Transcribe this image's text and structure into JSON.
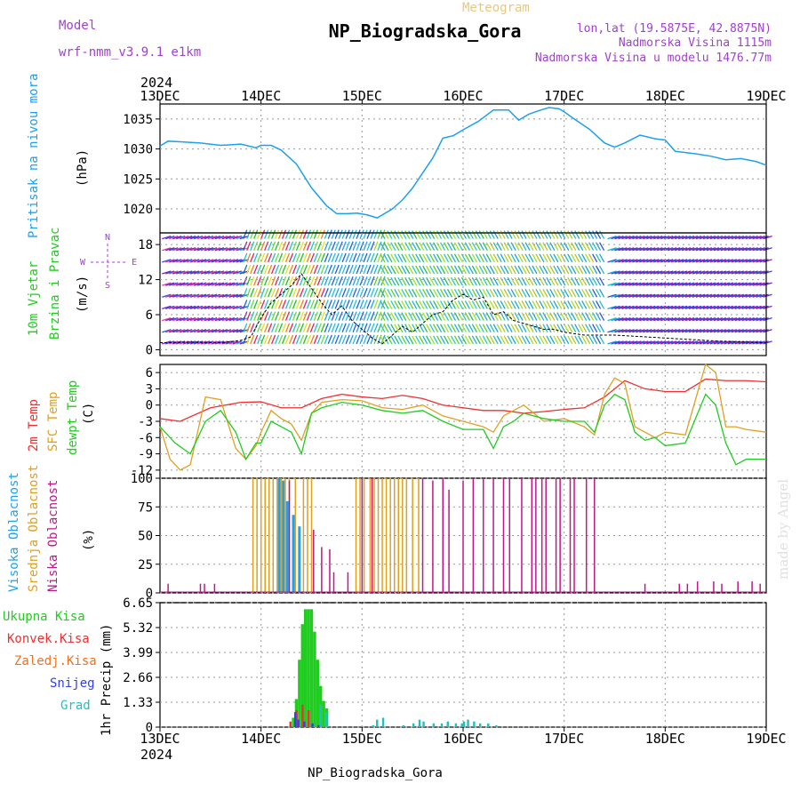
{
  "header": {
    "model_label": "Model",
    "model_name": "wrf-nmm_v3.9.1 e1km",
    "product": "Meteogram",
    "station": "NP_Biogradska_Gora",
    "lonlat": "lon,lat (19.5875E, 42.8875N)",
    "altitude": "Nadmorska Visina 1115m",
    "model_altitude": "Nadmorska Visina u modelu 1476.77m",
    "year": "2024",
    "footer_station": "NP_Biogradska_Gora",
    "watermark": "made by Angel"
  },
  "colors": {
    "pressure": "#1ea0f0",
    "t2m": "#ee3030",
    "tsfc": "#e0a020",
    "dewpt": "#20cc20",
    "cloud_high": "#20a0f0",
    "cloud_mid": "#e0a020",
    "cloud_low": "#c0188a",
    "total_precip": "#20cc20",
    "conv_precip": "#ee3030",
    "frz_precip": "#f07020",
    "snow": "#3040ee",
    "graupel": "#20c0c0",
    "purple_text": "#a040d0"
  },
  "chart_data": [
    {
      "type": "line",
      "panel": "pressure",
      "ylabel_left": "Pritisak na nivou mora",
      "ylabel": "(hPa)",
      "x_ticks": [
        "13DEC",
        "14DEC",
        "15DEC",
        "16DEC",
        "17DEC",
        "18DEC",
        "19DEC"
      ],
      "ylim": [
        1016,
        1037.5
      ],
      "yticks": [
        "1020",
        "1025",
        "1030",
        "1035"
      ],
      "series": [
        {
          "x": [
            0,
            0.08,
            0.2,
            0.4,
            0.6,
            0.8,
            0.95,
            1.0,
            1.1,
            1.2,
            1.35,
            1.5,
            1.65,
            1.75,
            1.85,
            1.95,
            2.05,
            2.15,
            2.3,
            2.4,
            2.5,
            2.6,
            2.7,
            2.8,
            2.9,
            3.0,
            3.15,
            3.3,
            3.45,
            3.55,
            3.65,
            3.75,
            3.85,
            3.95,
            4.0,
            4.1,
            4.25,
            4.4,
            4.5,
            4.6,
            4.75,
            4.9,
            5.0,
            5.1,
            5.3,
            5.45,
            5.6,
            5.75,
            5.9,
            6.0
          ],
          "y": [
            1030.5,
            1031.3,
            1031.2,
            1031,
            1030.6,
            1030.8,
            1030.2,
            1030.6,
            1030.6,
            1029.8,
            1027.5,
            1023.5,
            1020.5,
            1019.2,
            1019.2,
            1019.3,
            1019,
            1018.5,
            1020,
            1021.5,
            1023.5,
            1026,
            1028.5,
            1031.8,
            1032.2,
            1033.2,
            1034.6,
            1036.5,
            1036.5,
            1034.8,
            1035.8,
            1036.4,
            1036.9,
            1036.7,
            1036.2,
            1035,
            1033.3,
            1031,
            1030.3,
            1031,
            1032.3,
            1031.7,
            1031.5,
            1029.6,
            1029.2,
            1028.8,
            1028.2,
            1028.4,
            1027.9,
            1027.3
          ]
        }
      ]
    },
    {
      "type": "line",
      "panel": "wind",
      "ylabel_left": [
        "10m Vjetar",
        "Brzina i Pravac"
      ],
      "ylabel": "(m/s)",
      "compass": [
        "N",
        "W",
        "E",
        "S"
      ],
      "ylim": [
        -1,
        20
      ],
      "yticks": [
        "0",
        "6",
        "12",
        "18"
      ],
      "series": [
        {
          "name": "speed",
          "x": [
            0,
            0.3,
            0.6,
            0.8,
            0.9,
            1.0,
            1.1,
            1.2,
            1.3,
            1.4,
            1.5,
            1.6,
            1.7,
            1.8,
            1.9,
            2.0,
            2.1,
            2.2,
            2.3,
            2.4,
            2.5,
            2.6,
            2.7,
            2.8,
            2.9,
            3.0,
            3.1,
            3.2,
            3.3,
            3.4,
            3.5,
            3.6,
            3.7,
            3.8,
            3.9,
            4.0,
            4.2,
            4.5,
            5.0,
            5.5,
            6.0
          ],
          "y": [
            1.2,
            1.3,
            1.2,
            1.6,
            2.2,
            5.5,
            8,
            9.5,
            11,
            13,
            10.5,
            8,
            6,
            7.5,
            5,
            3.5,
            2,
            1,
            2.5,
            4,
            3,
            4.5,
            6,
            6.5,
            8.5,
            9.5,
            8.5,
            9,
            6,
            6.5,
            5,
            4.5,
            4,
            3.5,
            3.5,
            3,
            2.5,
            2.5,
            2,
            1.5,
            1.2
          ]
        }
      ]
    },
    {
      "type": "line",
      "panel": "temperature",
      "ylabel_left": [
        "2m Temp",
        "SFC Temp",
        "dewpt Temp"
      ],
      "ylabel": "(C)",
      "ylim": [
        -13.5,
        7.5
      ],
      "yticks": [
        "6",
        "3",
        "0",
        "-3",
        "-6",
        "-9",
        "-12"
      ],
      "series": [
        {
          "name": "2m Temp",
          "x": [
            0,
            0.2,
            0.5,
            0.8,
            1.0,
            1.2,
            1.4,
            1.6,
            1.8,
            2.0,
            2.2,
            2.4,
            2.6,
            2.8,
            3.0,
            3.2,
            3.4,
            3.6,
            3.8,
            4.0,
            4.2,
            4.4,
            4.6,
            4.8,
            5.0,
            5.2,
            5.4,
            5.6,
            5.8,
            6.0
          ],
          "y": [
            -2.5,
            -3,
            -0.5,
            0.5,
            0.6,
            -0.5,
            -0.5,
            1.2,
            2,
            1.5,
            1.2,
            1.8,
            1.2,
            0,
            -0.5,
            -1,
            -1,
            -1.5,
            -1.2,
            -0.8,
            -0.5,
            1.5,
            4.5,
            3,
            2.5,
            2.5,
            4.8,
            4.5,
            4.5,
            4.3
          ]
        },
        {
          "name": "SFC Temp",
          "x": [
            0,
            0.1,
            0.2,
            0.3,
            0.45,
            0.6,
            0.75,
            0.85,
            0.95,
            1.0,
            1.1,
            1.2,
            1.3,
            1.4,
            1.5,
            1.6,
            1.8,
            2.0,
            2.2,
            2.4,
            2.6,
            2.8,
            3.0,
            3.2,
            3.3,
            3.4,
            3.5,
            3.6,
            3.8,
            4.0,
            4.2,
            4.3,
            4.4,
            4.5,
            4.6,
            4.7,
            4.8,
            4.9,
            5.0,
            5.2,
            5.4,
            5.5,
            5.6,
            5.7,
            5.8,
            6.0
          ],
          "y": [
            -4,
            -10,
            -12,
            -11,
            1.5,
            1,
            -8,
            -10,
            -7.5,
            -5,
            -1,
            -2.5,
            -3.5,
            -6.5,
            -1.5,
            0.5,
            1,
            0.8,
            -0.5,
            -0.8,
            0,
            -2,
            -3,
            -4,
            -5,
            -2,
            -1,
            0,
            -3,
            -2.5,
            -4,
            -5.5,
            2,
            5,
            4,
            -4,
            -5,
            -6,
            -5,
            -5.5,
            7.5,
            6,
            -4,
            -4,
            -4.5,
            -5
          ]
        },
        {
          "name": "dewpt Temp",
          "x": [
            0,
            0.15,
            0.3,
            0.45,
            0.6,
            0.75,
            0.85,
            0.95,
            1.0,
            1.1,
            1.2,
            1.3,
            1.4,
            1.5,
            1.6,
            1.8,
            2.0,
            2.2,
            2.4,
            2.6,
            2.8,
            3.0,
            3.2,
            3.3,
            3.4,
            3.5,
            3.6,
            3.8,
            4.0,
            4.2,
            4.3,
            4.4,
            4.5,
            4.6,
            4.7,
            4.8,
            4.9,
            5.0,
            5.2,
            5.4,
            5.5,
            5.6,
            5.7,
            5.8,
            6.0
          ],
          "y": [
            -4,
            -7,
            -9,
            -3,
            -1,
            -5,
            -10,
            -7,
            -7,
            -3,
            -4,
            -5,
            -9,
            -1.5,
            -0.5,
            0.5,
            0,
            -1,
            -1.5,
            -1,
            -3,
            -4.5,
            -4.5,
            -8,
            -4,
            -3,
            -1.5,
            -2.5,
            -3,
            -3,
            -5,
            0,
            2,
            1,
            -5,
            -6.5,
            -6,
            -7.5,
            -7,
            2,
            0,
            -7,
            -11,
            -10,
            -10
          ]
        }
      ]
    },
    {
      "type": "bar",
      "panel": "cloud",
      "ylabel_left": [
        "Visoka Oblacnost",
        "Srednja Oblacnost",
        "Niska Oblacnost"
      ],
      "ylabel": "(%)",
      "ylim": [
        0,
        100
      ],
      "yticks": [
        "0",
        "25",
        "50",
        "75",
        "100"
      ],
      "series": [
        {
          "name": "Srednja Oblacnost",
          "x": [
            0.92,
            0.96,
            1.0,
            1.04,
            1.08,
            1.12,
            1.16,
            1.2,
            1.24,
            1.28,
            1.34,
            1.42,
            1.46,
            1.5,
            1.94,
            1.98,
            2.02,
            2.08,
            2.12,
            2.16,
            2.2,
            2.24,
            2.28,
            2.32,
            2.36,
            2.4,
            2.44,
            2.5,
            2.56
          ],
          "y": [
            100,
            100,
            100,
            100,
            100,
            100,
            100,
            100,
            100,
            100,
            100,
            100,
            100,
            100,
            100,
            100,
            100,
            100,
            100,
            100,
            100,
            100,
            100,
            100,
            100,
            100,
            100,
            100,
            100
          ]
        },
        {
          "name": "Visoka Oblacnost",
          "x": [
            1.18,
            1.22,
            1.26,
            1.32,
            1.38
          ],
          "y": [
            100,
            98,
            80,
            68,
            58
          ]
        },
        {
          "name": "Niska Oblacnost",
          "x": [
            0.08,
            0.4,
            0.44,
            0.54,
            1.28,
            1.52,
            1.6,
            1.68,
            1.72,
            1.86,
            2.0,
            2.1,
            2.6,
            2.7,
            2.8,
            2.86,
            3.0,
            3.1,
            3.2,
            3.3,
            3.4,
            3.46,
            3.58,
            3.68,
            3.72,
            3.78,
            3.82,
            3.92,
            3.96,
            4.06,
            4.1,
            4.22,
            4.3,
            4.8,
            5.14,
            5.22,
            5.32,
            5.48,
            5.56,
            5.72,
            5.86,
            5.94
          ],
          "y": [
            8,
            8,
            8,
            8,
            98,
            55,
            40,
            38,
            18,
            18,
            100,
            100,
            100,
            98,
            100,
            90,
            98,
            100,
            100,
            100,
            100,
            100,
            100,
            100,
            100,
            100,
            100,
            100,
            100,
            100,
            100,
            100,
            100,
            8,
            8,
            8,
            10,
            10,
            8,
            10,
            10,
            8
          ]
        }
      ]
    },
    {
      "type": "bar",
      "panel": "precip",
      "ylabel_left": [
        "Ukupna Kisa",
        "Konvek.Kisa",
        "Zaledj.Kisa",
        "Snijeg",
        "Grad"
      ],
      "ylabel": "1hr Precip (mm)",
      "ylim": [
        0,
        6.65
      ],
      "yticks": [
        "0",
        "1.33",
        "2.66",
        "3.99",
        "5.32",
        "6.65"
      ],
      "x_ticks": [
        "13DEC",
        "14DEC",
        "15DEC",
        "16DEC",
        "17DEC",
        "18DEC",
        "19DEC"
      ],
      "series": [
        {
          "name": "Ukupna Kisa",
          "x": [
            1.32,
            1.35,
            1.38,
            1.41,
            1.44,
            1.47,
            1.5,
            1.53,
            1.56,
            1.59,
            1.62,
            1.65
          ],
          "y": [
            0.5,
            1.5,
            3.6,
            5.5,
            6.3,
            6.3,
            6.3,
            5.1,
            3.6,
            2.2,
            1.4,
            1
          ]
        },
        {
          "name": "Konvek.Kisa",
          "x": [
            1.3,
            1.36,
            1.42,
            1.48
          ],
          "y": [
            0.3,
            0.9,
            1.2,
            0.9
          ]
        },
        {
          "name": "Snijeg",
          "x": [
            1.33,
            1.36,
            1.42,
            1.5,
            1.56
          ],
          "y": [
            0.8,
            0.4,
            0.3,
            0.2,
            0.1
          ]
        },
        {
          "name": "Grad",
          "x": [
            1.58,
            1.64,
            2.1,
            2.14,
            2.2,
            2.4,
            2.5,
            2.56,
            2.6,
            2.7,
            2.78,
            2.84,
            2.92,
            2.98,
            3.0,
            3.04,
            3.1,
            3.16,
            3.24,
            3.32
          ],
          "y": [
            1.2,
            0.8,
            0.1,
            0.4,
            0.5,
            0.1,
            0.2,
            0.4,
            0.3,
            0.2,
            0.2,
            0.3,
            0.2,
            0.2,
            0.3,
            0.4,
            0.3,
            0.2,
            0.2,
            0.1
          ]
        }
      ]
    }
  ]
}
